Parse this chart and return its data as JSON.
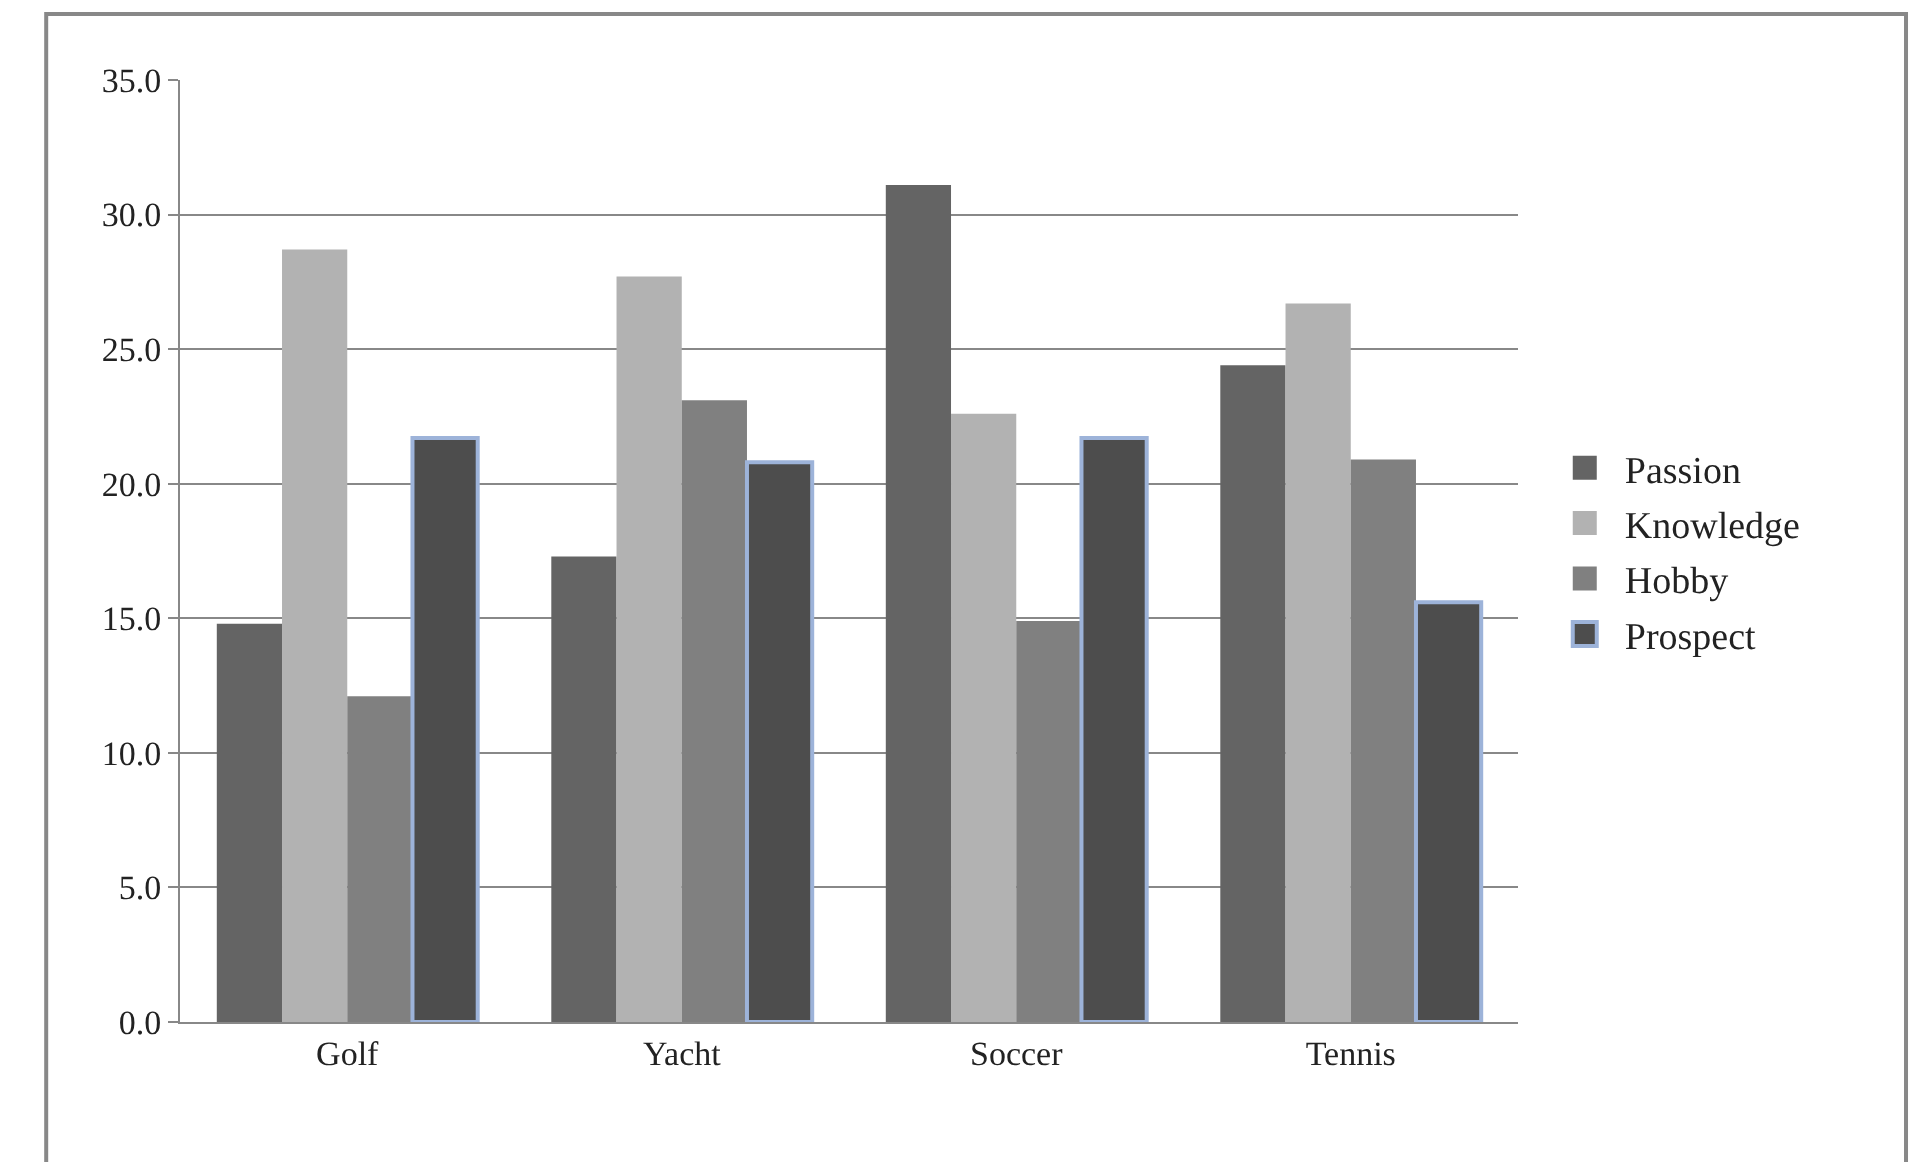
{
  "chart_data": {
    "type": "bar",
    "categories": [
      "Golf",
      "Yacht",
      "Soccer",
      "Tennis"
    ],
    "series": [
      {
        "name": "Passion",
        "color": "#646464",
        "values": [
          14.8,
          17.3,
          31.1,
          24.4
        ]
      },
      {
        "name": "Knowledge",
        "color": "#b2b2b2",
        "values": [
          28.7,
          27.7,
          22.6,
          26.7
        ]
      },
      {
        "name": "Hobby",
        "color": "#808080",
        "values": [
          12.1,
          23.1,
          14.9,
          20.9
        ]
      },
      {
        "name": "Prospect",
        "color": "#4d4d4d",
        "values": [
          21.7,
          20.8,
          21.7,
          15.6
        ]
      }
    ],
    "ylim": [
      0,
      35
    ],
    "yticks": [
      {
        "value": 0,
        "label": "0.0"
      },
      {
        "value": 5,
        "label": "5.0"
      },
      {
        "value": 10,
        "label": "10.0"
      },
      {
        "value": 15,
        "label": "15.0"
      },
      {
        "value": 20,
        "label": "20.0"
      },
      {
        "value": 25,
        "label": "25.0"
      },
      {
        "value": 30,
        "label": "30.0"
      },
      {
        "value": 35,
        "label": "35.0"
      }
    ],
    "grid": "y",
    "legend": "right"
  }
}
